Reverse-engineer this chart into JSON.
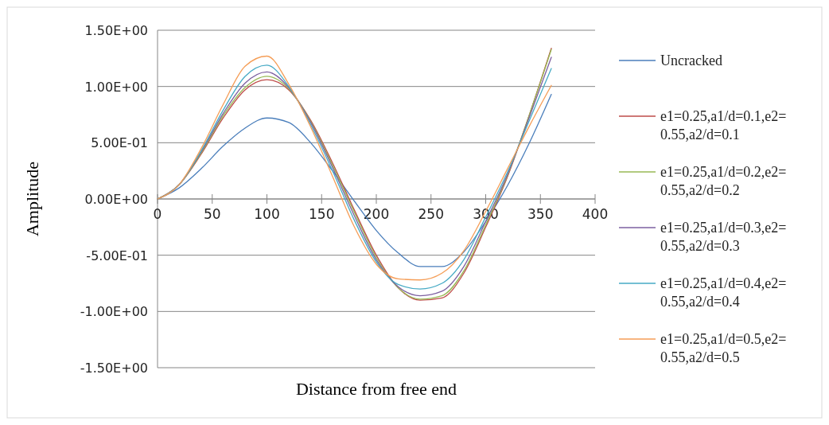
{
  "chart_data": {
    "type": "line",
    "xlabel": "Distance from free end",
    "ylabel": "Amplitude",
    "x": [
      0,
      20,
      40,
      60,
      80,
      100,
      120,
      140,
      160,
      180,
      200,
      220,
      240,
      260,
      280,
      300,
      320,
      340,
      360
    ],
    "xlim": [
      0,
      400
    ],
    "xticks": [
      0,
      50,
      100,
      150,
      200,
      250,
      300,
      350,
      400
    ],
    "ylim": [
      -1.5,
      1.5
    ],
    "yticks": [
      {
        "value": -1.5,
        "label": "-1.50E+00"
      },
      {
        "value": -1,
        "label": "-1.00E+00"
      },
      {
        "value": -0.5,
        "label": "-5.00E-01"
      },
      {
        "value": 0,
        "label": "0.00E+00"
      },
      {
        "value": 0.5,
        "label": "5.00E-01"
      },
      {
        "value": 1,
        "label": "1.00E+00"
      },
      {
        "value": 1.5,
        "label": "1.50E+00"
      }
    ],
    "grid": "y",
    "legend": "right",
    "marker": "none",
    "line_style": "solid",
    "series": [
      {
        "name": "Uncracked",
        "color": "#4a7ebb",
        "values": [
          0,
          0.1,
          0.27,
          0.47,
          0.63,
          0.72,
          0.68,
          0.5,
          0.25,
          -0.02,
          -0.28,
          -0.48,
          -0.6,
          -0.6,
          -0.47,
          -0.2,
          0.12,
          0.5,
          0.93
        ]
      },
      {
        "name": "e1=0.25,a1/d=0.1,e2=0.55,a2/d=0.1",
        "color": "#be4b48",
        "values": [
          0,
          0.13,
          0.4,
          0.72,
          0.97,
          1.06,
          0.97,
          0.7,
          0.32,
          -0.1,
          -0.5,
          -0.79,
          -0.9,
          -0.88,
          -0.66,
          -0.25,
          0.2,
          0.75,
          1.34
        ]
      },
      {
        "name": "e1=0.25,a1/d=0.2,e2=0.55,a2/d=0.2",
        "color": "#98b954",
        "values": [
          0,
          0.13,
          0.41,
          0.74,
          0.99,
          1.09,
          0.98,
          0.69,
          0.3,
          -0.12,
          -0.52,
          -0.79,
          -0.89,
          -0.86,
          -0.64,
          -0.23,
          0.21,
          0.75,
          1.33
        ]
      },
      {
        "name": "e1=0.25,a1/d=0.3,e2=0.55,a2/d=0.3",
        "color": "#7d60a0",
        "values": [
          0,
          0.13,
          0.42,
          0.76,
          1.03,
          1.13,
          0.99,
          0.68,
          0.28,
          -0.15,
          -0.54,
          -0.78,
          -0.86,
          -0.82,
          -0.6,
          -0.2,
          0.22,
          0.73,
          1.26
        ]
      },
      {
        "name": "e1=0.25,a1/d=0.4,e2=0.55,a2/d=0.4",
        "color": "#46aac5",
        "values": [
          0,
          0.13,
          0.43,
          0.79,
          1.09,
          1.19,
          1.0,
          0.66,
          0.25,
          -0.19,
          -0.56,
          -0.76,
          -0.8,
          -0.75,
          -0.54,
          -0.16,
          0.24,
          0.7,
          1.16
        ]
      },
      {
        "name": "e1=0.25,a1/d=0.5,e2=0.55,a2/d=0.5",
        "color": "#f59d56",
        "values": [
          0,
          0.13,
          0.45,
          0.84,
          1.18,
          1.27,
          1.02,
          0.64,
          0.2,
          -0.25,
          -0.58,
          -0.71,
          -0.72,
          -0.66,
          -0.46,
          -0.11,
          0.27,
          0.65,
          1.01
        ]
      }
    ]
  }
}
